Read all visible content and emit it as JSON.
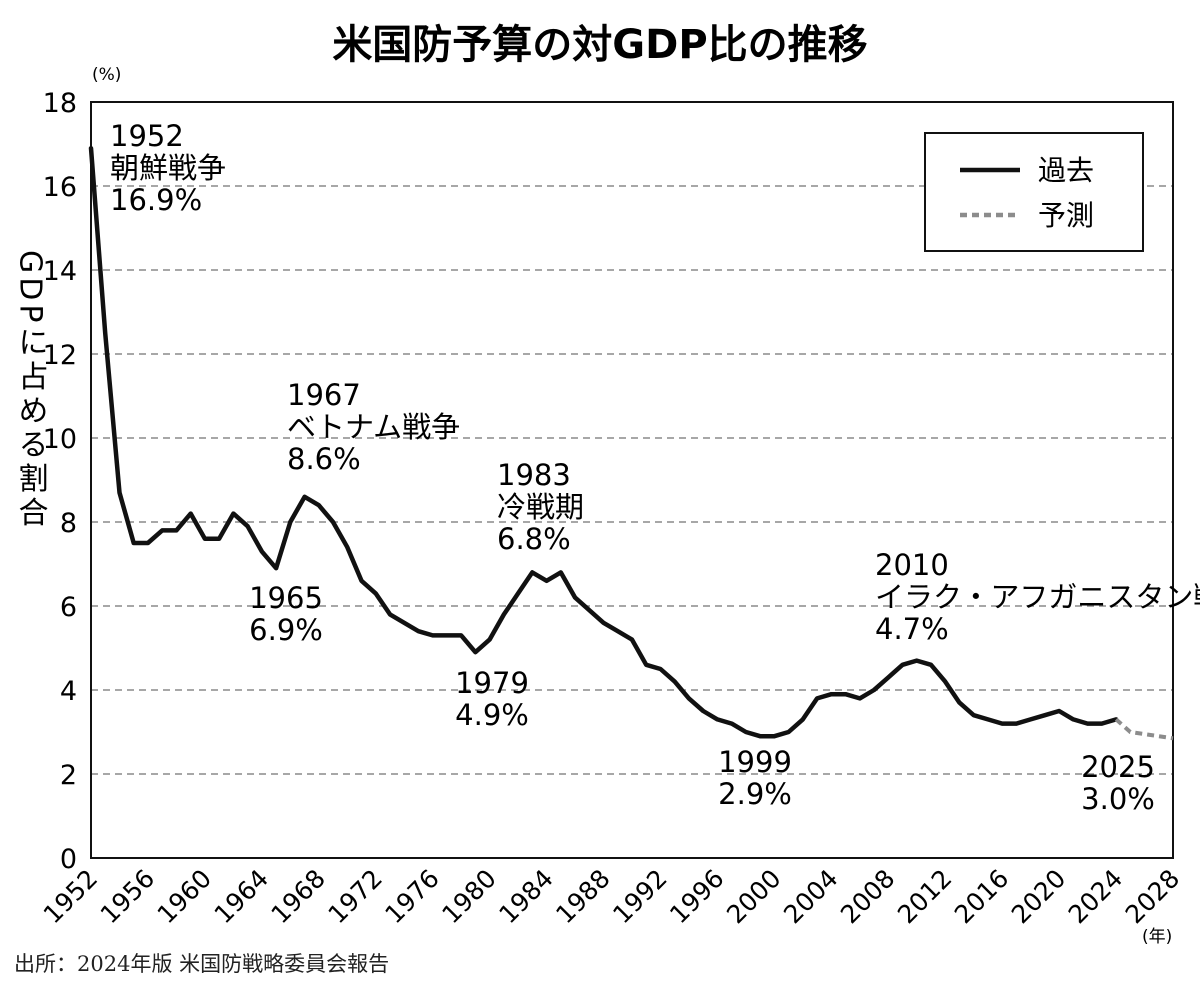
{
  "chart_data": {
    "type": "line",
    "title": "米国防予算の対GDP比の推移",
    "ylabel": "GDPに占める割合",
    "y_unit": "(%)",
    "x_unit": "(年)",
    "ylim": [
      0,
      18
    ],
    "xlim": [
      1952,
      2028
    ],
    "y_ticks": [
      "0",
      "2",
      "4",
      "6",
      "8",
      "10",
      "12",
      "14",
      "16",
      "18"
    ],
    "x_ticks": [
      "1952",
      "1956",
      "1960",
      "1964",
      "1968",
      "1972",
      "1976",
      "1980",
      "1984",
      "1988",
      "1992",
      "1996",
      "2000",
      "2004",
      "2008",
      "2012",
      "2016",
      "2020",
      "2024",
      "2028"
    ],
    "grid": "horizontal dashed",
    "legend": {
      "position": "top-right",
      "entries": [
        {
          "label": "過去",
          "style": "solid",
          "color": "#111111"
        },
        {
          "label": "予測",
          "style": "dashed",
          "color": "#8c8c8c"
        }
      ]
    },
    "series": [
      {
        "name": "過去",
        "color": "#111111",
        "points": [
          [
            1952,
            16.9
          ],
          [
            1953,
            12.5
          ],
          [
            1954,
            8.7
          ],
          [
            1955,
            7.5
          ],
          [
            1956,
            7.5
          ],
          [
            1957,
            7.8
          ],
          [
            1958,
            7.8
          ],
          [
            1959,
            8.2
          ],
          [
            1960,
            7.6
          ],
          [
            1961,
            7.6
          ],
          [
            1962,
            8.2
          ],
          [
            1963,
            7.9
          ],
          [
            1964,
            7.3
          ],
          [
            1965,
            6.9
          ],
          [
            1966,
            8.0
          ],
          [
            1967,
            8.6
          ],
          [
            1968,
            8.4
          ],
          [
            1969,
            8.0
          ],
          [
            1970,
            7.4
          ],
          [
            1971,
            6.6
          ],
          [
            1972,
            6.3
          ],
          [
            1973,
            5.8
          ],
          [
            1974,
            5.6
          ],
          [
            1975,
            5.4
          ],
          [
            1976,
            5.3
          ],
          [
            1977,
            5.3
          ],
          [
            1978,
            5.3
          ],
          [
            1979,
            4.9
          ],
          [
            1980,
            5.2
          ],
          [
            1981,
            5.8
          ],
          [
            1982,
            6.3
          ],
          [
            1983,
            6.8
          ],
          [
            1984,
            6.6
          ],
          [
            1985,
            6.8
          ],
          [
            1986,
            6.2
          ],
          [
            1987,
            5.9
          ],
          [
            1988,
            5.6
          ],
          [
            1989,
            5.4
          ],
          [
            1990,
            5.2
          ],
          [
            1991,
            4.6
          ],
          [
            1992,
            4.5
          ],
          [
            1993,
            4.2
          ],
          [
            1994,
            3.8
          ],
          [
            1995,
            3.5
          ],
          [
            1996,
            3.3
          ],
          [
            1997,
            3.2
          ],
          [
            1998,
            3.0
          ],
          [
            1999,
            2.9
          ],
          [
            2000,
            2.9
          ],
          [
            2001,
            3.0
          ],
          [
            2002,
            3.3
          ],
          [
            2003,
            3.8
          ],
          [
            2004,
            3.9
          ],
          [
            2005,
            3.9
          ],
          [
            2006,
            3.8
          ],
          [
            2007,
            4.0
          ],
          [
            2008,
            4.3
          ],
          [
            2009,
            4.6
          ],
          [
            2010,
            4.7
          ],
          [
            2011,
            4.6
          ],
          [
            2012,
            4.2
          ],
          [
            2013,
            3.7
          ],
          [
            2014,
            3.4
          ],
          [
            2015,
            3.3
          ],
          [
            2016,
            3.2
          ],
          [
            2017,
            3.2
          ],
          [
            2018,
            3.3
          ],
          [
            2019,
            3.4
          ],
          [
            2020,
            3.5
          ],
          [
            2021,
            3.3
          ],
          [
            2022,
            3.2
          ],
          [
            2023,
            3.2
          ],
          [
            2024,
            3.3
          ]
        ]
      },
      {
        "name": "予測",
        "color": "#8c8c8c",
        "dashed": true,
        "points": [
          [
            2024,
            3.3
          ],
          [
            2025,
            3.0
          ],
          [
            2026,
            2.95
          ],
          [
            2027,
            2.9
          ],
          [
            2028,
            2.85
          ]
        ]
      }
    ],
    "annotations": [
      {
        "year": "1952",
        "event": "朝鮮戦争",
        "value": "16.9%"
      },
      {
        "year": "1965",
        "event": "",
        "value": "6.9%"
      },
      {
        "year": "1967",
        "event": "ベトナム戦争",
        "value": "8.6%"
      },
      {
        "year": "1979",
        "event": "",
        "value": "4.9%"
      },
      {
        "year": "1983",
        "event": "冷戦期",
        "value": "6.8%"
      },
      {
        "year": "1999",
        "event": "",
        "value": "2.9%"
      },
      {
        "year": "2010",
        "event": "イラク・アフガニスタン戦争",
        "value": "4.7%"
      },
      {
        "year": "2025",
        "event": "",
        "value": "3.0%"
      }
    ]
  },
  "source": "出所：2024年版 米国防戦略委員会報告"
}
